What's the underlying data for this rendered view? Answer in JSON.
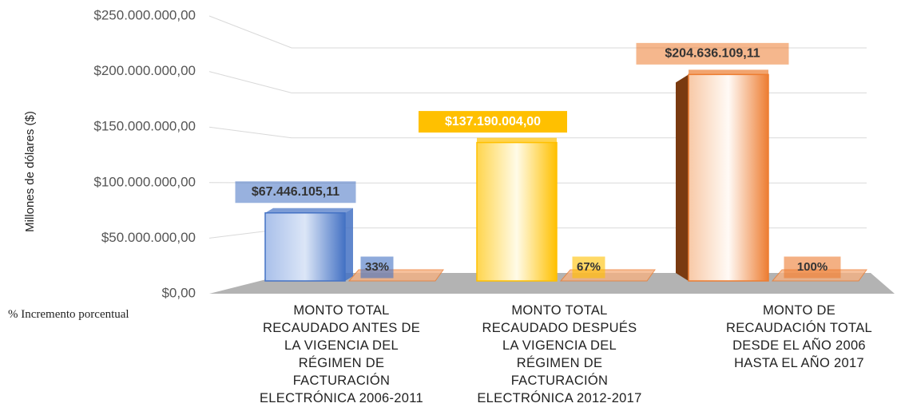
{
  "chart_data": {
    "type": "bar",
    "y_axis_label": "Millones de dólares ($)",
    "ylim": [
      0,
      250000000
    ],
    "yticks": [
      {
        "value": 0,
        "label": "$0,00"
      },
      {
        "value": 50000000,
        "label": "$50.000.000,00"
      },
      {
        "value": 100000000,
        "label": "$100.000.000,00"
      },
      {
        "value": 150000000,
        "label": "$150.000.000,00"
      },
      {
        "value": 200000000,
        "label": "$200.000.000,00"
      },
      {
        "value": 250000000,
        "label": "$250.000.000,00"
      }
    ],
    "grid": true,
    "categories": [
      "MONTO TOTAL RECAUDADO ANTES DE LA VIGENCIA DEL RÉGIMEN DE FACTURACIÓN ELECTRÓNICA 2006-2011",
      "MONTO TOTAL RECAUDADO DESPUÉS LA VIGENCIA DEL RÉGIMEN DE FACTURACIÓN ELECTRÓNICA 2012-2017",
      "MONTO DE RECAUDACIÓN TOTAL DESDE EL AÑO 2006 HASTA EL AÑO 2017"
    ],
    "series": [
      {
        "colors": [
          "#4472c4",
          "#ffc000",
          "#ed7d31"
        ],
        "values": [
          67446105.11,
          137190004.0,
          204636109.11
        ],
        "value_labels": [
          "$67.446.105,11",
          "$137.190.004,00",
          "$204.636.109,11"
        ]
      },
      {
        "name": "% Incremento porcentual",
        "color": "#f4b183",
        "values": [
          33,
          67,
          100
        ],
        "value_labels": [
          "33%",
          "67%",
          "100%"
        ]
      }
    ]
  }
}
